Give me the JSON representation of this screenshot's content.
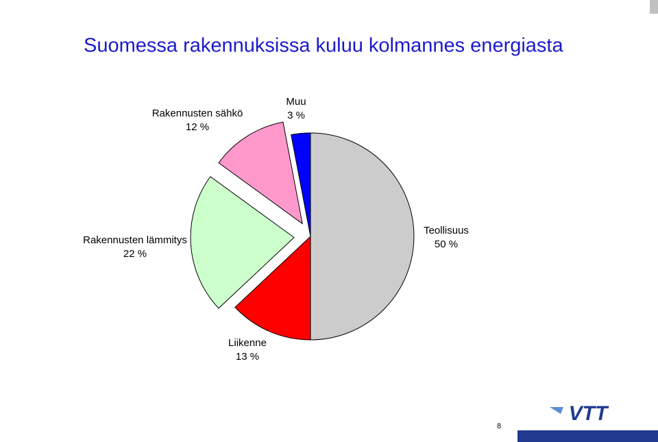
{
  "chart_data": {
    "type": "pie",
    "title": "Suomessa rakennuksissa kuluu kolmannes energiasta",
    "categories": [
      "Teollisuus",
      "Liikenne",
      "Rakennusten lämmitys",
      "Rakennusten sähkö",
      "Muu"
    ],
    "values": [
      50,
      13,
      22,
      12,
      3
    ],
    "value_labels": [
      "50 %",
      "13 %",
      "22 %",
      "12 %",
      "3 %"
    ],
    "colors": [
      "#cccccc",
      "#ff0000",
      "#ccffcc",
      "#ff99cc",
      "#0000ff"
    ]
  },
  "footer": {
    "logo": "VTT",
    "page_number": "8"
  }
}
